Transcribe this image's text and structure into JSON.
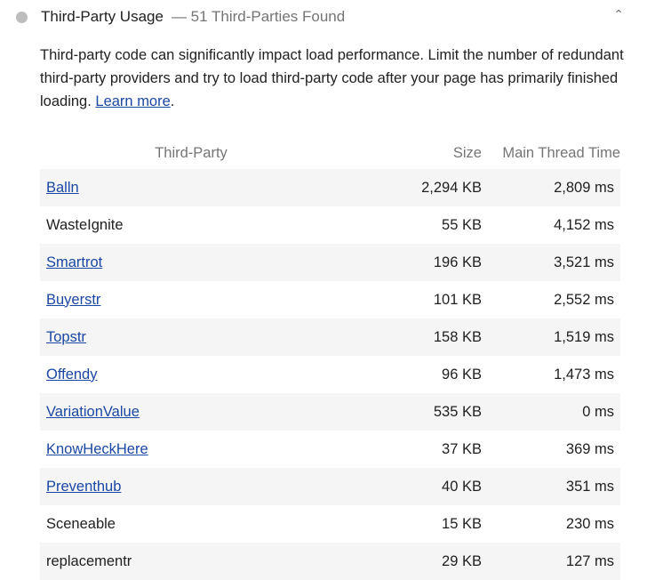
{
  "audit": {
    "title": "Third-Party Usage",
    "display_value": "— 51 Third-Parties Found",
    "status_color": "#bdbdbd",
    "expanded": true,
    "description": "Third-party code can significantly impact load performance. Limit the number of redundant third-party providers and try to load third-party code after your page has primarily finished loading.",
    "learn_more": "Learn more",
    "period": "."
  },
  "table": {
    "headers": [
      "Third-Party",
      "Size",
      "Main Thread Time"
    ],
    "rows": [
      {
        "name": "Balln",
        "link": true,
        "size": "2,294 KB",
        "time": "2,809 ms"
      },
      {
        "name": "WasteIgnite",
        "link": false,
        "size": "55 KB",
        "time": "4,152 ms"
      },
      {
        "name": "Smartrot",
        "link": true,
        "size": "196 KB",
        "time": "3,521 ms"
      },
      {
        "name": "Buyerstr",
        "link": true,
        "size": "101 KB",
        "time": "2,552 ms"
      },
      {
        "name": "Topstr",
        "link": true,
        "size": "158 KB",
        "time": "1,519 ms"
      },
      {
        "name": "Offendy",
        "link": true,
        "size": "96 KB",
        "time": "1,473 ms"
      },
      {
        "name": "VariationValue",
        "link": true,
        "size": "535 KB",
        "time": "0 ms"
      },
      {
        "name": "KnowHeckHere",
        "link": true,
        "size": "37 KB",
        "time": "369 ms"
      },
      {
        "name": "Preventhub",
        "link": true,
        "size": "40 KB",
        "time": "351 ms"
      },
      {
        "name": "Sceneable",
        "link": false,
        "size": "15 KB",
        "time": "230 ms"
      },
      {
        "name": "replacementr",
        "link": false,
        "size": "29 KB",
        "time": "127 ms"
      }
    ]
  }
}
